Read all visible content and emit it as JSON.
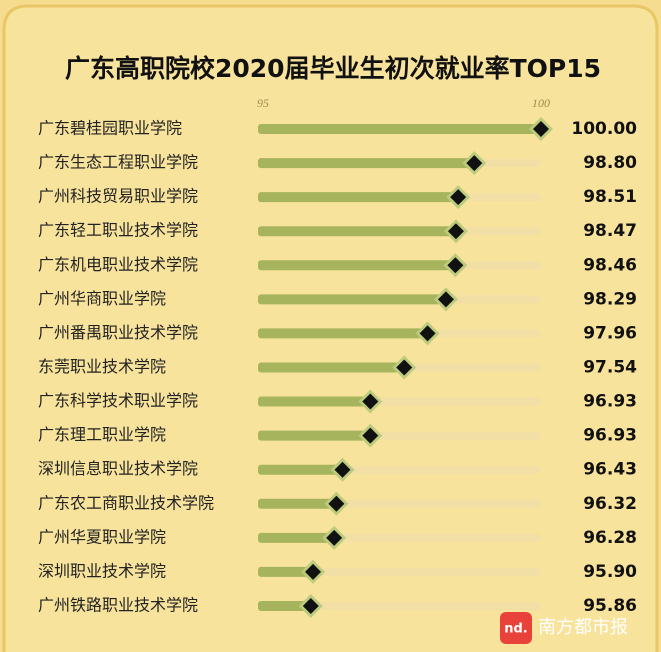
{
  "chart_data": {
    "type": "lollipop",
    "title": "广东高职院校2020届毕业生初次就业率TOP15",
    "categories": [
      "广东碧桂园职业学院",
      "广东生态工程职业学院",
      "广州科技贸易职业学院",
      "广东轻工职业技术学院",
      "广东机电职业技术学院",
      "广州华商职业学院",
      "广州番禺职业技术学院",
      "东莞职业技术学院",
      "广东科学技术职业学院",
      "广东理工职业学院",
      "深圳信息职业技术学院",
      "广东农工商职业技术学院",
      "广州华夏职业学院",
      "深圳职业技术学院",
      "广州铁路职业技术学院"
    ],
    "values": [
      100.0,
      98.8,
      98.51,
      98.47,
      98.46,
      98.29,
      97.96,
      97.54,
      96.93,
      96.93,
      96.43,
      96.32,
      96.28,
      95.9,
      95.86
    ],
    "value_labels": [
      "100.00",
      "98.80",
      "98.51",
      "98.47",
      "98.46",
      "98.29",
      "97.96",
      "97.54",
      "96.93",
      "96.93",
      "96.43",
      "96.32",
      "96.28",
      "95.90",
      "95.86"
    ],
    "color": "#a6b45d",
    "marker_color": "#111111",
    "xlim": [
      95,
      100
    ],
    "xticks": [
      95,
      100
    ]
  },
  "watermark": {
    "logo": "nd.",
    "text": "南方都市报"
  }
}
